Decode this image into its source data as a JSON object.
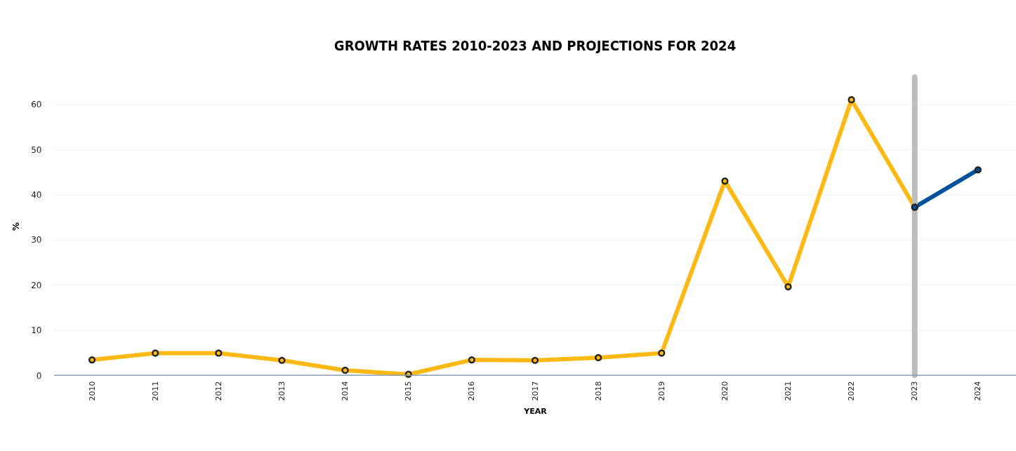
{
  "chart_data": {
    "type": "line",
    "title": "GROWTH RATES 2010-2023 AND PROJECTIONS FOR 2024",
    "xlabel": "YEAR",
    "ylabel": "%",
    "categories": [
      "2010",
      "2011",
      "2012",
      "2013",
      "2014",
      "2015",
      "2016",
      "2017",
      "2018",
      "2019",
      "2020",
      "2021",
      "2022",
      "2023",
      "2024"
    ],
    "series": [
      {
        "color": "#fdb913",
        "values": [
          3.4,
          4.9,
          4.9,
          3.3,
          1.1,
          0.2,
          3.4,
          3.3,
          3.9,
          4.9,
          43.0,
          19.6,
          61.0,
          37.2,
          null
        ]
      },
      {
        "color": "#00529b",
        "values": [
          null,
          null,
          null,
          null,
          null,
          null,
          null,
          null,
          null,
          null,
          null,
          null,
          null,
          37.2,
          45.5
        ]
      }
    ],
    "ylim": [
      0,
      66
    ],
    "yticks": [
      0,
      10,
      20,
      30,
      40,
      50,
      60
    ],
    "grid": "y",
    "marker": "circle",
    "line_style": "solid",
    "ref_lines": [
      {
        "axis": "x",
        "value": "2023",
        "color": "#bdbdbd"
      }
    ]
  }
}
